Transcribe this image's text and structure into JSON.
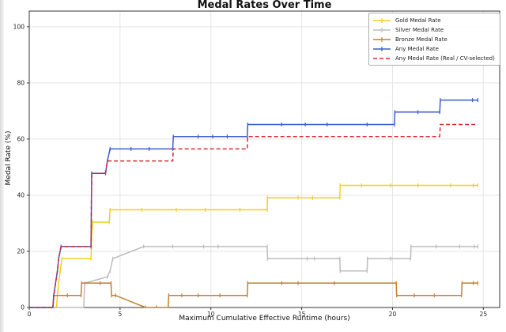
{
  "chart_data": {
    "type": "line",
    "title": "Medal Rates Over Time",
    "xlabel": "Maximum Cumulative Effective Runtime (hours)",
    "ylabel": "Medal Rate (%)",
    "x_ticks": [
      0,
      5,
      10,
      15,
      20,
      25
    ],
    "y_ticks": [
      0,
      20,
      40,
      60,
      80,
      100
    ],
    "xlim": [
      0,
      25.9
    ],
    "ylim": [
      0,
      105.6
    ],
    "grid": true,
    "grid_color": "#e5e5e5",
    "axis_color": "#333333",
    "legend_position": "upper right",
    "series": [
      {
        "name": "Gold Medal Rate",
        "color": "#f2cf1d",
        "style": "solid",
        "markers": true,
        "points": [
          [
            0,
            0
          ],
          [
            1.5,
            0
          ],
          [
            1.55,
            4.3
          ],
          [
            1.62,
            8.7
          ],
          [
            1.7,
            13
          ],
          [
            1.8,
            17.4
          ],
          [
            3.4,
            17.4
          ],
          [
            3.44,
            26.1
          ],
          [
            3.5,
            30.4
          ],
          [
            4.4,
            30.4
          ],
          [
            4.45,
            34.8
          ],
          [
            6.2,
            34.8
          ],
          [
            8.1,
            34.8
          ],
          [
            9.7,
            34.8
          ],
          [
            11.6,
            34.8
          ],
          [
            13.1,
            34.8
          ],
          [
            13.12,
            39.1
          ],
          [
            14.8,
            39.1
          ],
          [
            15.6,
            39.1
          ],
          [
            17.1,
            39.1
          ],
          [
            17.12,
            43.5
          ],
          [
            18.3,
            43.5
          ],
          [
            19.9,
            43.5
          ],
          [
            21.4,
            43.5
          ],
          [
            23.2,
            43.5
          ],
          [
            24.45,
            43.5
          ],
          [
            24.7,
            43.5
          ]
        ]
      },
      {
        "name": "Silver Medal Rate",
        "color": "#bdbdbd",
        "style": "solid",
        "markers": true,
        "points": [
          [
            0,
            0
          ],
          [
            3.0,
            0
          ],
          [
            3.05,
            8.7
          ],
          [
            4.3,
            10.9
          ],
          [
            4.45,
            13
          ],
          [
            4.6,
            17.4
          ],
          [
            6.3,
            21.7
          ],
          [
            7.9,
            21.7
          ],
          [
            9.6,
            21.7
          ],
          [
            10.4,
            21.7
          ],
          [
            13.1,
            21.7
          ],
          [
            13.12,
            17.4
          ],
          [
            15.3,
            17.4
          ],
          [
            15.7,
            17.4
          ],
          [
            17.1,
            17.4
          ],
          [
            17.12,
            13
          ],
          [
            18.6,
            13
          ],
          [
            18.62,
            17.4
          ],
          [
            19.9,
            17.4
          ],
          [
            21.0,
            17.4
          ],
          [
            21.02,
            21.7
          ],
          [
            22.4,
            21.7
          ],
          [
            23.7,
            21.7
          ],
          [
            24.5,
            21.7
          ],
          [
            24.7,
            21.7
          ]
        ]
      },
      {
        "name": "Bronze Medal Rate",
        "color": "#c5812f",
        "style": "solid",
        "markers": true,
        "points": [
          [
            0,
            0
          ],
          [
            1.3,
            0
          ],
          [
            1.35,
            4.3
          ],
          [
            2.1,
            4.3
          ],
          [
            2.85,
            4.3
          ],
          [
            2.88,
            8.7
          ],
          [
            3.9,
            8.7
          ],
          [
            4.5,
            8.7
          ],
          [
            4.53,
            4.3
          ],
          [
            4.75,
            4.3
          ],
          [
            6.4,
            0
          ],
          [
            7.0,
            0
          ],
          [
            7.65,
            0
          ],
          [
            7.68,
            4.3
          ],
          [
            8.4,
            4.3
          ],
          [
            9.3,
            4.3
          ],
          [
            10.5,
            4.3
          ],
          [
            12.0,
            4.3
          ],
          [
            12.03,
            8.7
          ],
          [
            13.9,
            8.7
          ],
          [
            14.8,
            8.7
          ],
          [
            16.8,
            8.7
          ],
          [
            20.2,
            8.7
          ],
          [
            20.23,
            4.3
          ],
          [
            21.2,
            4.3
          ],
          [
            22.3,
            4.3
          ],
          [
            23.8,
            4.3
          ],
          [
            23.83,
            8.7
          ],
          [
            24.45,
            8.7
          ],
          [
            24.7,
            8.7
          ]
        ]
      },
      {
        "name": "Any Medal Rate",
        "color": "#3b5dcd",
        "style": "solid",
        "markers": true,
        "points": [
          [
            0,
            0
          ],
          [
            1.3,
            0
          ],
          [
            1.35,
            4.3
          ],
          [
            1.45,
            8.7
          ],
          [
            1.55,
            13
          ],
          [
            1.62,
            17.4
          ],
          [
            1.75,
            21.7
          ],
          [
            3.4,
            21.7
          ],
          [
            3.44,
            47.8
          ],
          [
            4.2,
            47.8
          ],
          [
            4.3,
            52.2
          ],
          [
            4.45,
            56.5
          ],
          [
            5.6,
            56.5
          ],
          [
            6.6,
            56.5
          ],
          [
            7.9,
            56.5
          ],
          [
            7.93,
            60.9
          ],
          [
            9.3,
            60.9
          ],
          [
            10.1,
            60.9
          ],
          [
            10.9,
            60.9
          ],
          [
            12.0,
            60.9
          ],
          [
            12.03,
            65.2
          ],
          [
            13.9,
            65.2
          ],
          [
            15.2,
            65.2
          ],
          [
            16.4,
            65.2
          ],
          [
            18.6,
            65.2
          ],
          [
            20.1,
            65.2
          ],
          [
            20.13,
            69.6
          ],
          [
            21.4,
            69.6
          ],
          [
            22.6,
            69.6
          ],
          [
            22.63,
            73.9
          ],
          [
            24.4,
            73.9
          ],
          [
            24.7,
            73.9
          ]
        ]
      },
      {
        "name": "Any Medal Rate (Real / CV-selected)",
        "color": "#d62a33",
        "style": "dashed",
        "markers": false,
        "points": [
          [
            0,
            0
          ],
          [
            1.3,
            0
          ],
          [
            1.35,
            4.3
          ],
          [
            1.45,
            8.7
          ],
          [
            1.55,
            13
          ],
          [
            1.62,
            17.4
          ],
          [
            1.75,
            21.7
          ],
          [
            3.4,
            21.7
          ],
          [
            3.44,
            47.8
          ],
          [
            4.2,
            47.8
          ],
          [
            4.3,
            52.2
          ],
          [
            7.9,
            52.2
          ],
          [
            7.93,
            56.5
          ],
          [
            12.0,
            56.5
          ],
          [
            12.03,
            60.9
          ],
          [
            22.6,
            60.9
          ],
          [
            22.63,
            65.2
          ],
          [
            24.7,
            65.2
          ]
        ]
      }
    ]
  }
}
